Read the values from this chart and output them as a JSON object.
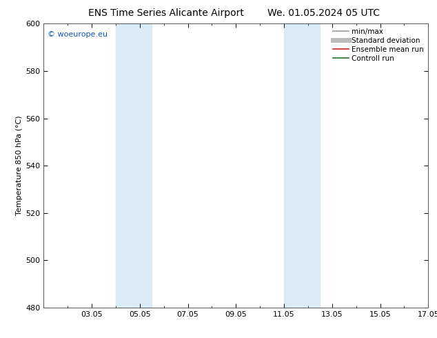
{
  "title_left": "ENS Time Series Alicante Airport",
  "title_right": "We. 01.05.2024 05 UTC",
  "ylabel": "Temperature 850 hPa (°C)",
  "ylim": [
    480,
    600
  ],
  "yticks": [
    480,
    500,
    520,
    540,
    560,
    580,
    600
  ],
  "xlim": [
    1.0,
    17.0
  ],
  "xtick_labels": [
    "03.05",
    "05.05",
    "07.05",
    "09.05",
    "11.05",
    "13.05",
    "15.05",
    "17.05"
  ],
  "xtick_positions": [
    3,
    5,
    7,
    9,
    11,
    13,
    15,
    17
  ],
  "shaded_bands": [
    {
      "x_start": 4.0,
      "x_end": 5.5
    },
    {
      "x_start": 11.0,
      "x_end": 12.5
    }
  ],
  "shaded_color": "#daeaf7",
  "watermark": "© woeurope.eu",
  "watermark_color": "#1155bb",
  "legend_items": [
    {
      "label": "min/max",
      "color": "#999999",
      "lw": 1.2
    },
    {
      "label": "Standard deviation",
      "color": "#bbbbbb",
      "lw": 5
    },
    {
      "label": "Ensemble mean run",
      "color": "#cc2222",
      "lw": 1.2
    },
    {
      "label": "Controll run",
      "color": "#227722",
      "lw": 1.2
    }
  ],
  "background_color": "#ffffff",
  "title_fontsize": 10,
  "axis_label_fontsize": 8,
  "tick_fontsize": 8,
  "watermark_fontsize": 8,
  "legend_fontsize": 7.5
}
